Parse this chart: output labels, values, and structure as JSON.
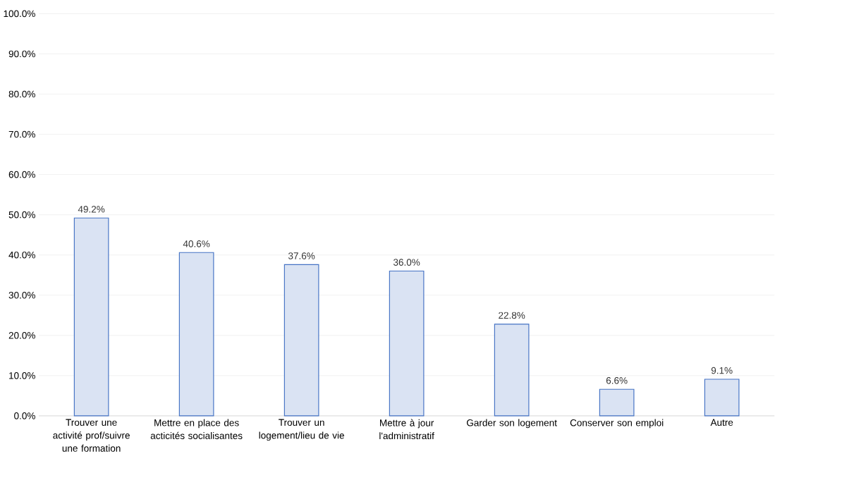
{
  "chart_data": {
    "type": "bar",
    "categories": [
      "Trouver une activité prof/suivre une formation",
      "Mettre en place des acticités socialisantes",
      "Trouver un logement/lieu de vie",
      "Mettre à jour l'administratif",
      "Garder son logement",
      "Conserver son emploi",
      "Autre"
    ],
    "values": [
      49.2,
      40.6,
      37.6,
      36.0,
      22.8,
      6.6,
      9.1
    ],
    "value_labels": [
      "49.2%",
      "40.6%",
      "37.6%",
      "36.0%",
      "22.8%",
      "6.6%",
      "9.1%"
    ],
    "color": "#dae3f3",
    "ylim": [
      0,
      100
    ],
    "yticks": [
      {
        "value": 0,
        "label": "0.0%"
      },
      {
        "value": 10,
        "label": "10.0%"
      },
      {
        "value": 20,
        "label": "20.0%"
      },
      {
        "value": 30,
        "label": "30.0%"
      },
      {
        "value": 40,
        "label": "40.0%"
      },
      {
        "value": 50,
        "label": "50.0%"
      },
      {
        "value": 60,
        "label": "60.0%"
      },
      {
        "value": 70,
        "label": "70.0%"
      },
      {
        "value": 80,
        "label": "80.0%"
      },
      {
        "value": 90,
        "label": "90.0%"
      },
      {
        "value": 100,
        "label": "100.0%"
      }
    ],
    "grid": "y"
  }
}
